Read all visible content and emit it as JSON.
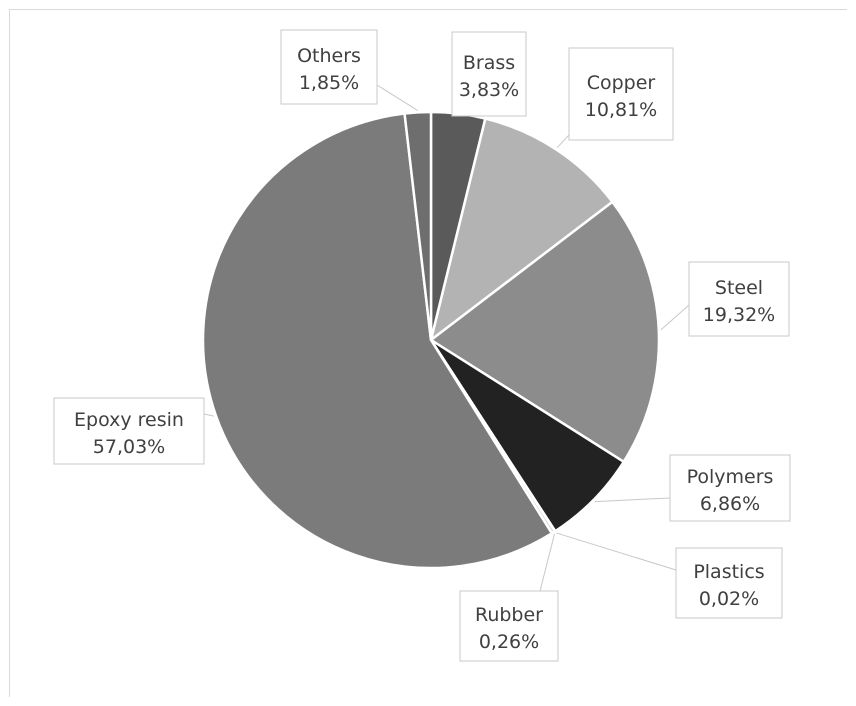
{
  "chart_data": {
    "type": "pie",
    "title": "",
    "start_angle_deg": 0,
    "direction": "clockwise",
    "legend": "none",
    "slices": [
      {
        "name": "Brass",
        "value": 3.83,
        "label": "3,83%",
        "color": "#5a5a5a"
      },
      {
        "name": "Copper",
        "value": 10.81,
        "label": "10,81%",
        "color": "#b3b3b3"
      },
      {
        "name": "Steel",
        "value": 19.32,
        "label": "19,32%",
        "color": "#8c8c8c"
      },
      {
        "name": "Polymers",
        "value": 6.86,
        "label": "6,86%",
        "color": "#222222"
      },
      {
        "name": "Plastics",
        "value": 0.02,
        "label": "0,02%",
        "color": "#9a9a9a"
      },
      {
        "name": "Rubber",
        "value": 0.26,
        "label": "0,26%",
        "color": "#d9d9d9"
      },
      {
        "name": "Epoxy resin",
        "value": 57.03,
        "label": "57,03%",
        "color": "#7b7b7b"
      },
      {
        "name": "Others",
        "value": 1.85,
        "label": "1,85%",
        "color": "#6e6e6e"
      }
    ]
  }
}
